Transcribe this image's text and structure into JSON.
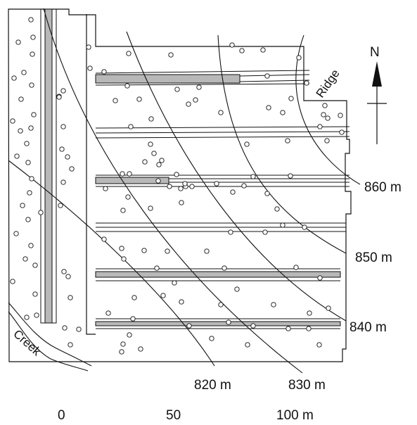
{
  "contours": [
    {
      "label": "820 m"
    },
    {
      "label": "830 m"
    },
    {
      "label": "840 m"
    },
    {
      "label": "850 m"
    },
    {
      "label": "860 m"
    }
  ],
  "features": {
    "ridge": "Ridge",
    "creek": "Creek",
    "north": "N"
  },
  "scale_bar": {
    "ticks": [
      "0",
      "50",
      "100 m"
    ]
  },
  "colors": {
    "ink": "#111111",
    "strip": "#b8b8b8",
    "background": "#ffffff"
  }
}
